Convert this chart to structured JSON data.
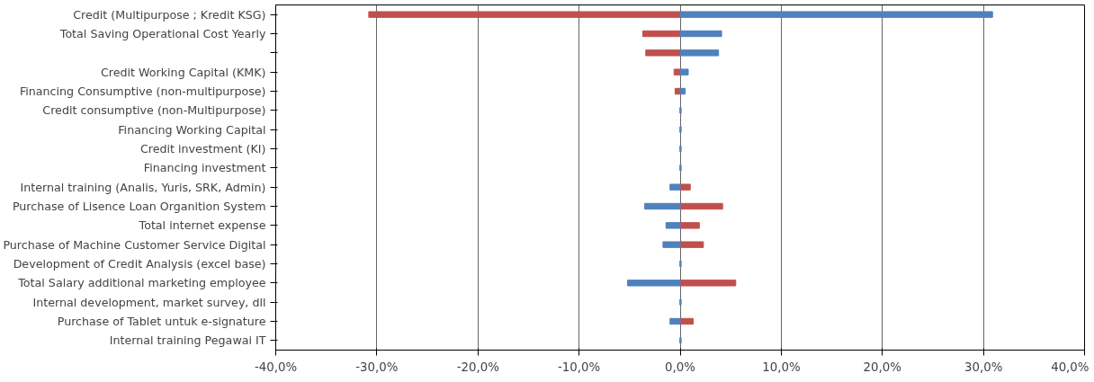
{
  "chart_data": {
    "type": "bar",
    "orientation": "horizontal",
    "categories": [
      "Credit (Multipurpose ; Kredit KSG)",
      "Total Saving Operational Cost Yearly",
      null,
      "Credit Working Capital (KMK)",
      "Financing Consumptive (non-multipurpose)",
      "Credit consumptive (non-Multipurpose)",
      "Financing Working Capital",
      "Credit investment (KI)",
      "Financing investment",
      "Internal training (Analis, Yuris, SRK, Admin)",
      "Purchase of Lisence Loan Organition System",
      "Total internet expense",
      "Purchase of Machine Customer Service Digital",
      "Development of Credit Analysis (excel base)",
      "Total Salary additional marketing employee",
      "Internal development, market survey, dll",
      "Purchase of Tablet untuk e-signature",
      "Internal training Pegawai IT"
    ],
    "series": [
      {
        "color": "#c0504d",
        "values": [
          -30.8,
          -3.7,
          -3.4,
          -0.6,
          -0.5,
          0,
          0,
          0,
          0,
          1.0,
          4.2,
          1.9,
          2.3,
          0,
          5.5,
          0,
          1.3,
          0
        ]
      },
      {
        "color": "#4f81bd",
        "values": [
          30.9,
          4.1,
          3.8,
          0.8,
          0.5,
          0.1,
          0.1,
          0.1,
          0.1,
          -1.0,
          -3.5,
          -1.4,
          -1.7,
          0.1,
          -5.2,
          0.1,
          -1.0,
          0.1
        ]
      }
    ],
    "xlim": [
      -40,
      40
    ],
    "xticks": [
      {
        "value": -40,
        "label": "-40,0%"
      },
      {
        "value": -30,
        "label": "-30,0%"
      },
      {
        "value": -20,
        "label": "-20,0%"
      },
      {
        "value": -10,
        "label": "-10,0%"
      },
      {
        "value": 0,
        "label": "0,0%"
      },
      {
        "value": 10,
        "label": "10,0%"
      },
      {
        "value": 20,
        "label": "20,0%"
      },
      {
        "value": 30,
        "label": "30,0%"
      },
      {
        "value": 40,
        "label": "40,0%"
      }
    ],
    "grid": "x",
    "stacked": true
  }
}
